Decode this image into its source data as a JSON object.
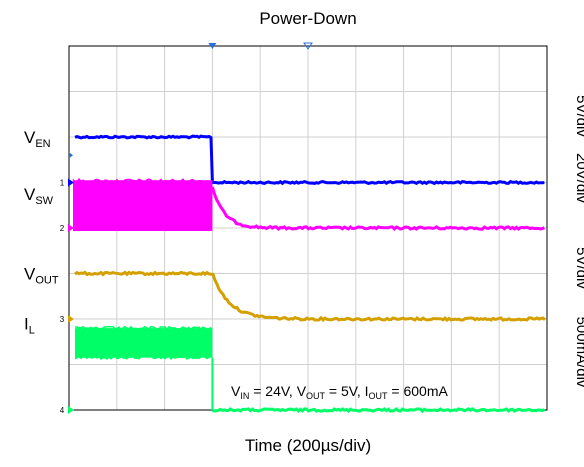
{
  "chart_data": {
    "type": "line",
    "title": "Power-Down",
    "xlabel": "Time (200µs/div)",
    "x_divisions": 10,
    "y_divisions": 8,
    "grid": true,
    "trigger_division": 3,
    "annotation": {
      "parts": [
        {
          "t": "V"
        },
        {
          "t": "IN",
          "sub": true
        },
        {
          "t": " = 24V, V"
        },
        {
          "t": "OUT",
          "sub": true
        },
        {
          "t": " = 5V, I"
        },
        {
          "t": "OUT",
          "sub": true
        },
        {
          "t": " = 600mA"
        }
      ]
    },
    "series": [
      {
        "name": "EN",
        "label_main": "V",
        "label_sub": "EN",
        "channel": "1",
        "color": "#0000ff",
        "ground_div": 5.0,
        "high_div": 6.0,
        "before_div": 6.0,
        "after_div": 5.0,
        "event_div": 3.0,
        "noise_div": 0.04
      },
      {
        "name": "SW",
        "label_main": "V",
        "label_sub": "SW",
        "channel": "2",
        "color": "#ff00ff",
        "ground_div": 4.0,
        "band_top_div": 5.05,
        "after_div": 4.0,
        "event_div": 3.0,
        "decay_div": 0.25,
        "noise_div": 0.05
      },
      {
        "name": "OUT",
        "label_main": "V",
        "label_sub": "OUT",
        "channel": "3",
        "color": "#d4a000",
        "ground_div": 2.0,
        "before_div": 3.0,
        "after_div": 2.0,
        "event_div": 3.0,
        "decay_div": 0.35,
        "noise_div": 0.05
      },
      {
        "name": "L",
        "label_main": "I",
        "label_sub": "L",
        "channel": "4",
        "color": "#00ff66",
        "ground_div": 0.0,
        "band_bottom_div": 1.15,
        "band_top_div": 1.8,
        "after_div": 0.0,
        "event_div": 3.0,
        "noise_div": 0.05
      }
    ],
    "scale_labels": [
      "5V/div",
      "20V/div",
      "5V/div",
      "500mA/div"
    ]
  }
}
